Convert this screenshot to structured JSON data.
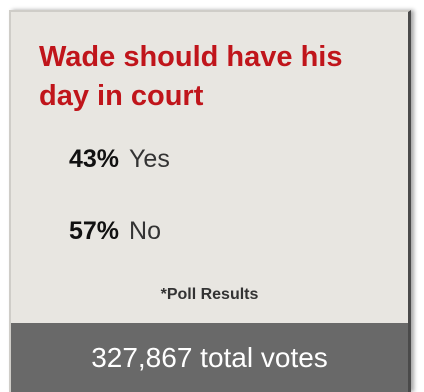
{
  "poll": {
    "title": "Wade should have his day in court",
    "options": [
      {
        "percent": "43%",
        "label": "Yes"
      },
      {
        "percent": "57%",
        "label": "No"
      }
    ],
    "note": "*Poll Results",
    "total_votes": "327,867 total votes"
  },
  "colors": {
    "title": "#c0151b",
    "card_background": "#e8e6e1",
    "footer_background": "#696969",
    "footer_text": "#ffffff"
  }
}
